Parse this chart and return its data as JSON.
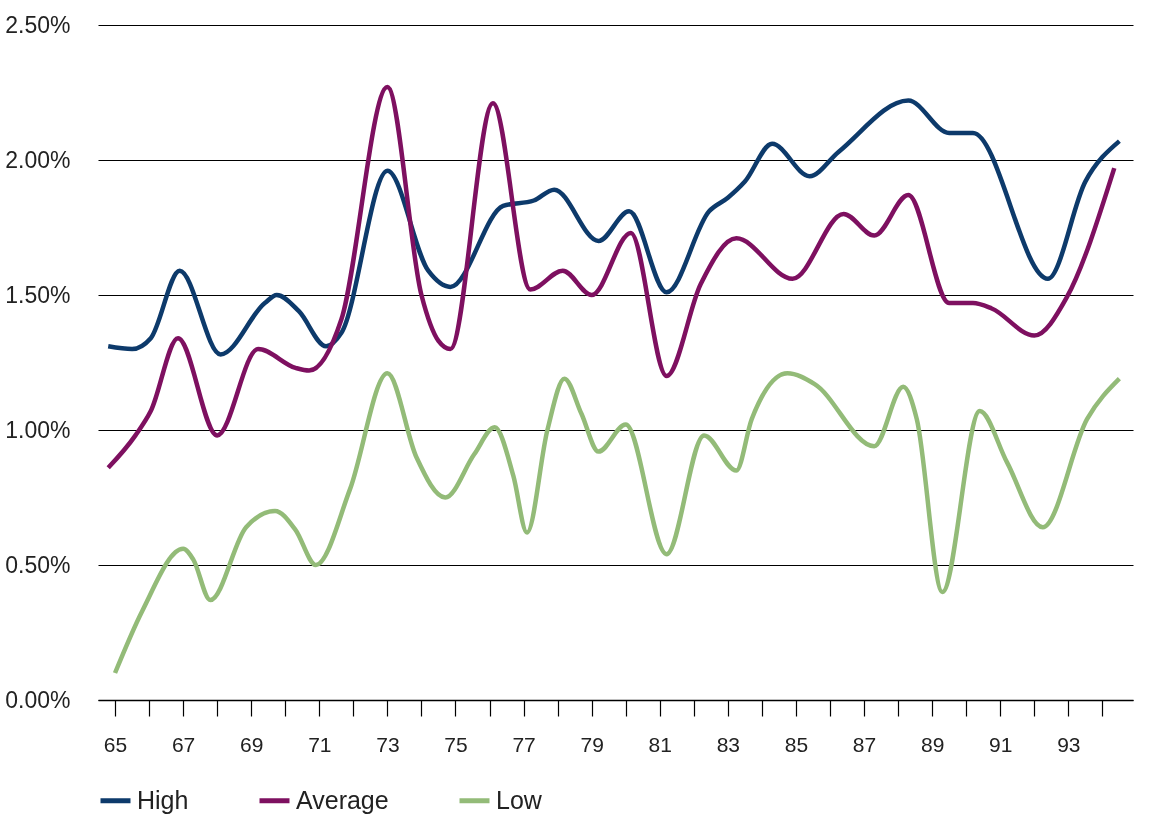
{
  "chart_data": {
    "type": "line",
    "xlim": [
      64.5,
      94.9
    ],
    "xticks": [
      {
        "value": 65,
        "label": "65"
      },
      {
        "value": 66,
        "label": null
      },
      {
        "value": 67,
        "label": "67"
      },
      {
        "value": 68,
        "label": null
      },
      {
        "value": 69,
        "label": "69"
      },
      {
        "value": 70,
        "label": null
      },
      {
        "value": 71,
        "label": "71"
      },
      {
        "value": 72,
        "label": null
      },
      {
        "value": 73,
        "label": "73"
      },
      {
        "value": 74,
        "label": null
      },
      {
        "value": 75,
        "label": "75"
      },
      {
        "value": 76,
        "label": null
      },
      {
        "value": 77,
        "label": "77"
      },
      {
        "value": 78,
        "label": null
      },
      {
        "value": 79,
        "label": "79"
      },
      {
        "value": 80,
        "label": null
      },
      {
        "value": 81,
        "label": "81"
      },
      {
        "value": 82,
        "label": null
      },
      {
        "value": 83,
        "label": "83"
      },
      {
        "value": 84,
        "label": null
      },
      {
        "value": 85,
        "label": "85"
      },
      {
        "value": 86,
        "label": null
      },
      {
        "value": 87,
        "label": "87"
      },
      {
        "value": 88,
        "label": null
      },
      {
        "value": 89,
        "label": "89"
      },
      {
        "value": 90,
        "label": null
      },
      {
        "value": 91,
        "label": "91"
      },
      {
        "value": 92,
        "label": null
      },
      {
        "value": 93,
        "label": "93"
      },
      {
        "value": 94,
        "label": null
      }
    ],
    "ylim": [
      0,
      2.5
    ],
    "yticks": [
      {
        "value": 0,
        "label": "0.00%"
      },
      {
        "value": 0.5,
        "label": "0.50%"
      },
      {
        "value": 1,
        "label": "1.00%"
      },
      {
        "value": 1.5,
        "label": "1.50%"
      },
      {
        "value": 2,
        "label": "2.00%"
      },
      {
        "value": 2.5,
        "label": "2.50%"
      }
    ],
    "grid": "y",
    "legend": "bottom",
    "marker": "none",
    "line_style": "solid",
    "series": [
      {
        "name": "High",
        "color": "#0d3a6b",
        "x": [
          64.8,
          65.5,
          66.05,
          66.9,
          68.1,
          69.4,
          69.75,
          70.4,
          71.2,
          71.65,
          73.0,
          74.2,
          74.85,
          76.4,
          77.3,
          77.9,
          79.2,
          80.1,
          81.2,
          82.45,
          83.0,
          83.5,
          84.3,
          85.4,
          86.25,
          88.3,
          89.5,
          90.2,
          92.4,
          93.5,
          94.5
        ],
        "values": [
          1.31,
          1.3,
          1.34,
          1.59,
          1.28,
          1.47,
          1.5,
          1.44,
          1.31,
          1.36,
          1.96,
          1.59,
          1.53,
          1.83,
          1.85,
          1.89,
          1.7,
          1.81,
          1.51,
          1.81,
          1.86,
          1.92,
          2.06,
          1.94,
          2.03,
          2.22,
          2.1,
          2.1,
          1.56,
          1.92,
          2.07
        ]
      },
      {
        "name": "Average",
        "color": "#7e1060",
        "x": [
          64.8,
          65.6,
          66.05,
          66.85,
          68.0,
          69.2,
          70.3,
          70.7,
          71.65,
          73.0,
          74.0,
          74.5,
          74.85,
          76.1,
          77.2,
          78.15,
          79.0,
          80.15,
          81.2,
          82.2,
          83.25,
          84.9,
          86.4,
          87.3,
          88.3,
          89.5,
          90.2,
          90.75,
          92.0,
          92.95,
          94.35
        ],
        "values": [
          0.86,
          0.98,
          1.07,
          1.34,
          0.98,
          1.3,
          1.23,
          1.22,
          1.41,
          2.27,
          1.5,
          1.33,
          1.3,
          2.21,
          1.52,
          1.59,
          1.5,
          1.73,
          1.2,
          1.54,
          1.71,
          1.56,
          1.8,
          1.72,
          1.87,
          1.47,
          1.47,
          1.45,
          1.35,
          1.49,
          1.97
        ]
      },
      {
        "name": "Low",
        "color": "#93bb78",
        "x": [
          65.0,
          65.8,
          67.0,
          67.3,
          67.8,
          68.85,
          69.7,
          70.3,
          70.9,
          71.9,
          73.0,
          73.85,
          74.7,
          75.55,
          76.15,
          76.7,
          77.1,
          77.7,
          78.2,
          78.7,
          79.2,
          80.0,
          81.2,
          82.3,
          83.25,
          83.7,
          84.75,
          85.55,
          87.3,
          88.15,
          88.55,
          89.3,
          90.4,
          91.2,
          92.25,
          93.55,
          94.5
        ],
        "values": [
          0.1,
          0.33,
          0.56,
          0.52,
          0.37,
          0.64,
          0.7,
          0.63,
          0.5,
          0.78,
          1.21,
          0.9,
          0.75,
          0.91,
          1.01,
          0.83,
          0.62,
          1.0,
          1.19,
          1.06,
          0.92,
          1.02,
          0.54,
          0.98,
          0.85,
          1.04,
          1.21,
          1.17,
          0.94,
          1.16,
          1.04,
          0.4,
          1.07,
          0.88,
          0.64,
          1.04,
          1.19
        ]
      }
    ]
  }
}
